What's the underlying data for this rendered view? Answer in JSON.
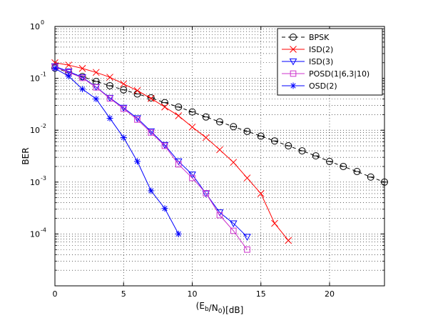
{
  "chart_data": {
    "type": "line",
    "title": "",
    "xlabel": "(E_b/N_0)[dB]",
    "ylabel": "BER",
    "xscale": "linear",
    "yscale": "log",
    "xlim": [
      0,
      24
    ],
    "ylim": [
      1e-05,
      1
    ],
    "grid": true,
    "legend_position": "top-right",
    "x_ticks": [
      0,
      5,
      10,
      15,
      20
    ],
    "y_ticks": [
      0.0001,
      0.001,
      0.01,
      0.1,
      1
    ],
    "series": [
      {
        "name": "BPSK",
        "color": "#000000",
        "dash": "dashed",
        "marker": "circle-minus",
        "x": [
          0,
          1,
          2,
          3,
          4,
          5,
          6,
          7,
          8,
          9,
          10,
          11,
          12,
          13,
          14,
          15,
          16,
          17,
          18,
          19,
          20,
          21,
          22,
          23,
          24
        ],
        "y": [
          0.158,
          0.13,
          0.108,
          0.087,
          0.072,
          0.06,
          0.05,
          0.042,
          0.034,
          0.028,
          0.0225,
          0.018,
          0.0145,
          0.0117,
          0.0095,
          0.0077,
          0.0062,
          0.005,
          0.004,
          0.0032,
          0.0025,
          0.002,
          0.0016,
          0.00125,
          0.001
        ]
      },
      {
        "name": "ISD(2)",
        "color": "#ff0000",
        "dash": "solid",
        "marker": "x",
        "x": [
          0,
          1,
          2,
          3,
          4,
          5,
          6,
          7,
          8,
          9,
          10,
          11,
          12,
          13,
          14,
          15,
          16,
          17
        ],
        "y": [
          0.2,
          0.18,
          0.155,
          0.13,
          0.105,
          0.078,
          0.058,
          0.041,
          0.028,
          0.019,
          0.0115,
          0.0072,
          0.0042,
          0.0024,
          0.0012,
          0.0006,
          0.00016,
          7.5e-05
        ]
      },
      {
        "name": "ISD(3)",
        "color": "#0000ff",
        "dash": "solid",
        "marker": "triangle-down",
        "x": [
          0,
          1,
          2,
          3,
          4,
          5,
          6,
          7,
          8,
          9,
          10,
          11,
          12,
          13,
          14
        ],
        "y": [
          0.17,
          0.135,
          0.105,
          0.068,
          0.042,
          0.027,
          0.017,
          0.0095,
          0.0052,
          0.0025,
          0.0014,
          0.0006,
          0.00026,
          0.00016,
          8.8e-05
        ]
      },
      {
        "name": "POSD(1|6,3|10)",
        "color": "#cc33cc",
        "dash": "solid",
        "marker": "square",
        "x": [
          0,
          1,
          2,
          3,
          4,
          5,
          6,
          7,
          8,
          9,
          10,
          11,
          12,
          13,
          14
        ],
        "y": [
          0.165,
          0.13,
          0.102,
          0.067,
          0.041,
          0.026,
          0.016,
          0.009,
          0.005,
          0.0022,
          0.0012,
          0.00061,
          0.00023,
          0.000115,
          5e-05
        ]
      },
      {
        "name": "OSD(2)",
        "color": "#0000ff",
        "dash": "solid",
        "marker": "asterisk",
        "x": [
          0,
          1,
          2,
          3,
          4,
          5,
          6,
          7,
          8,
          9
        ],
        "y": [
          0.155,
          0.11,
          0.062,
          0.04,
          0.017,
          0.0072,
          0.0025,
          0.00068,
          0.00031,
          0.0001
        ]
      }
    ]
  }
}
